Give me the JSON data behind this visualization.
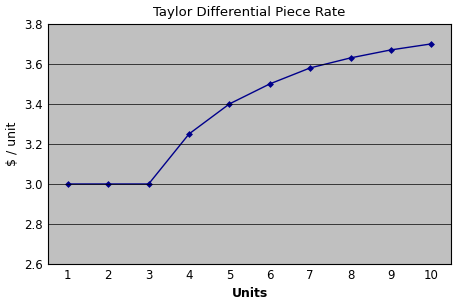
{
  "title": "Taylor Differential Piece Rate",
  "xlabel": "Units",
  "ylabel": "$ / unit",
  "x": [
    1,
    2,
    3,
    4,
    5,
    6,
    7,
    8,
    9,
    10
  ],
  "y": [
    3.0,
    3.0,
    3.0,
    3.25,
    3.4,
    3.5,
    3.58,
    3.63,
    3.67,
    3.7
  ],
  "ylim": [
    2.6,
    3.8
  ],
  "xlim": [
    0.5,
    10.5
  ],
  "yticks": [
    2.6,
    2.8,
    3.0,
    3.2,
    3.4,
    3.6,
    3.8
  ],
  "xticks": [
    1,
    2,
    3,
    4,
    5,
    6,
    7,
    8,
    9,
    10
  ],
  "line_color": "#00008B",
  "marker": "D",
  "marker_color": "#00008B",
  "marker_size": 3,
  "line_width": 1.0,
  "bg_color": "#C0C0C0",
  "outer_bg": "#FFFFFF",
  "title_fontsize": 9.5,
  "label_fontsize": 9,
  "tick_fontsize": 8.5
}
